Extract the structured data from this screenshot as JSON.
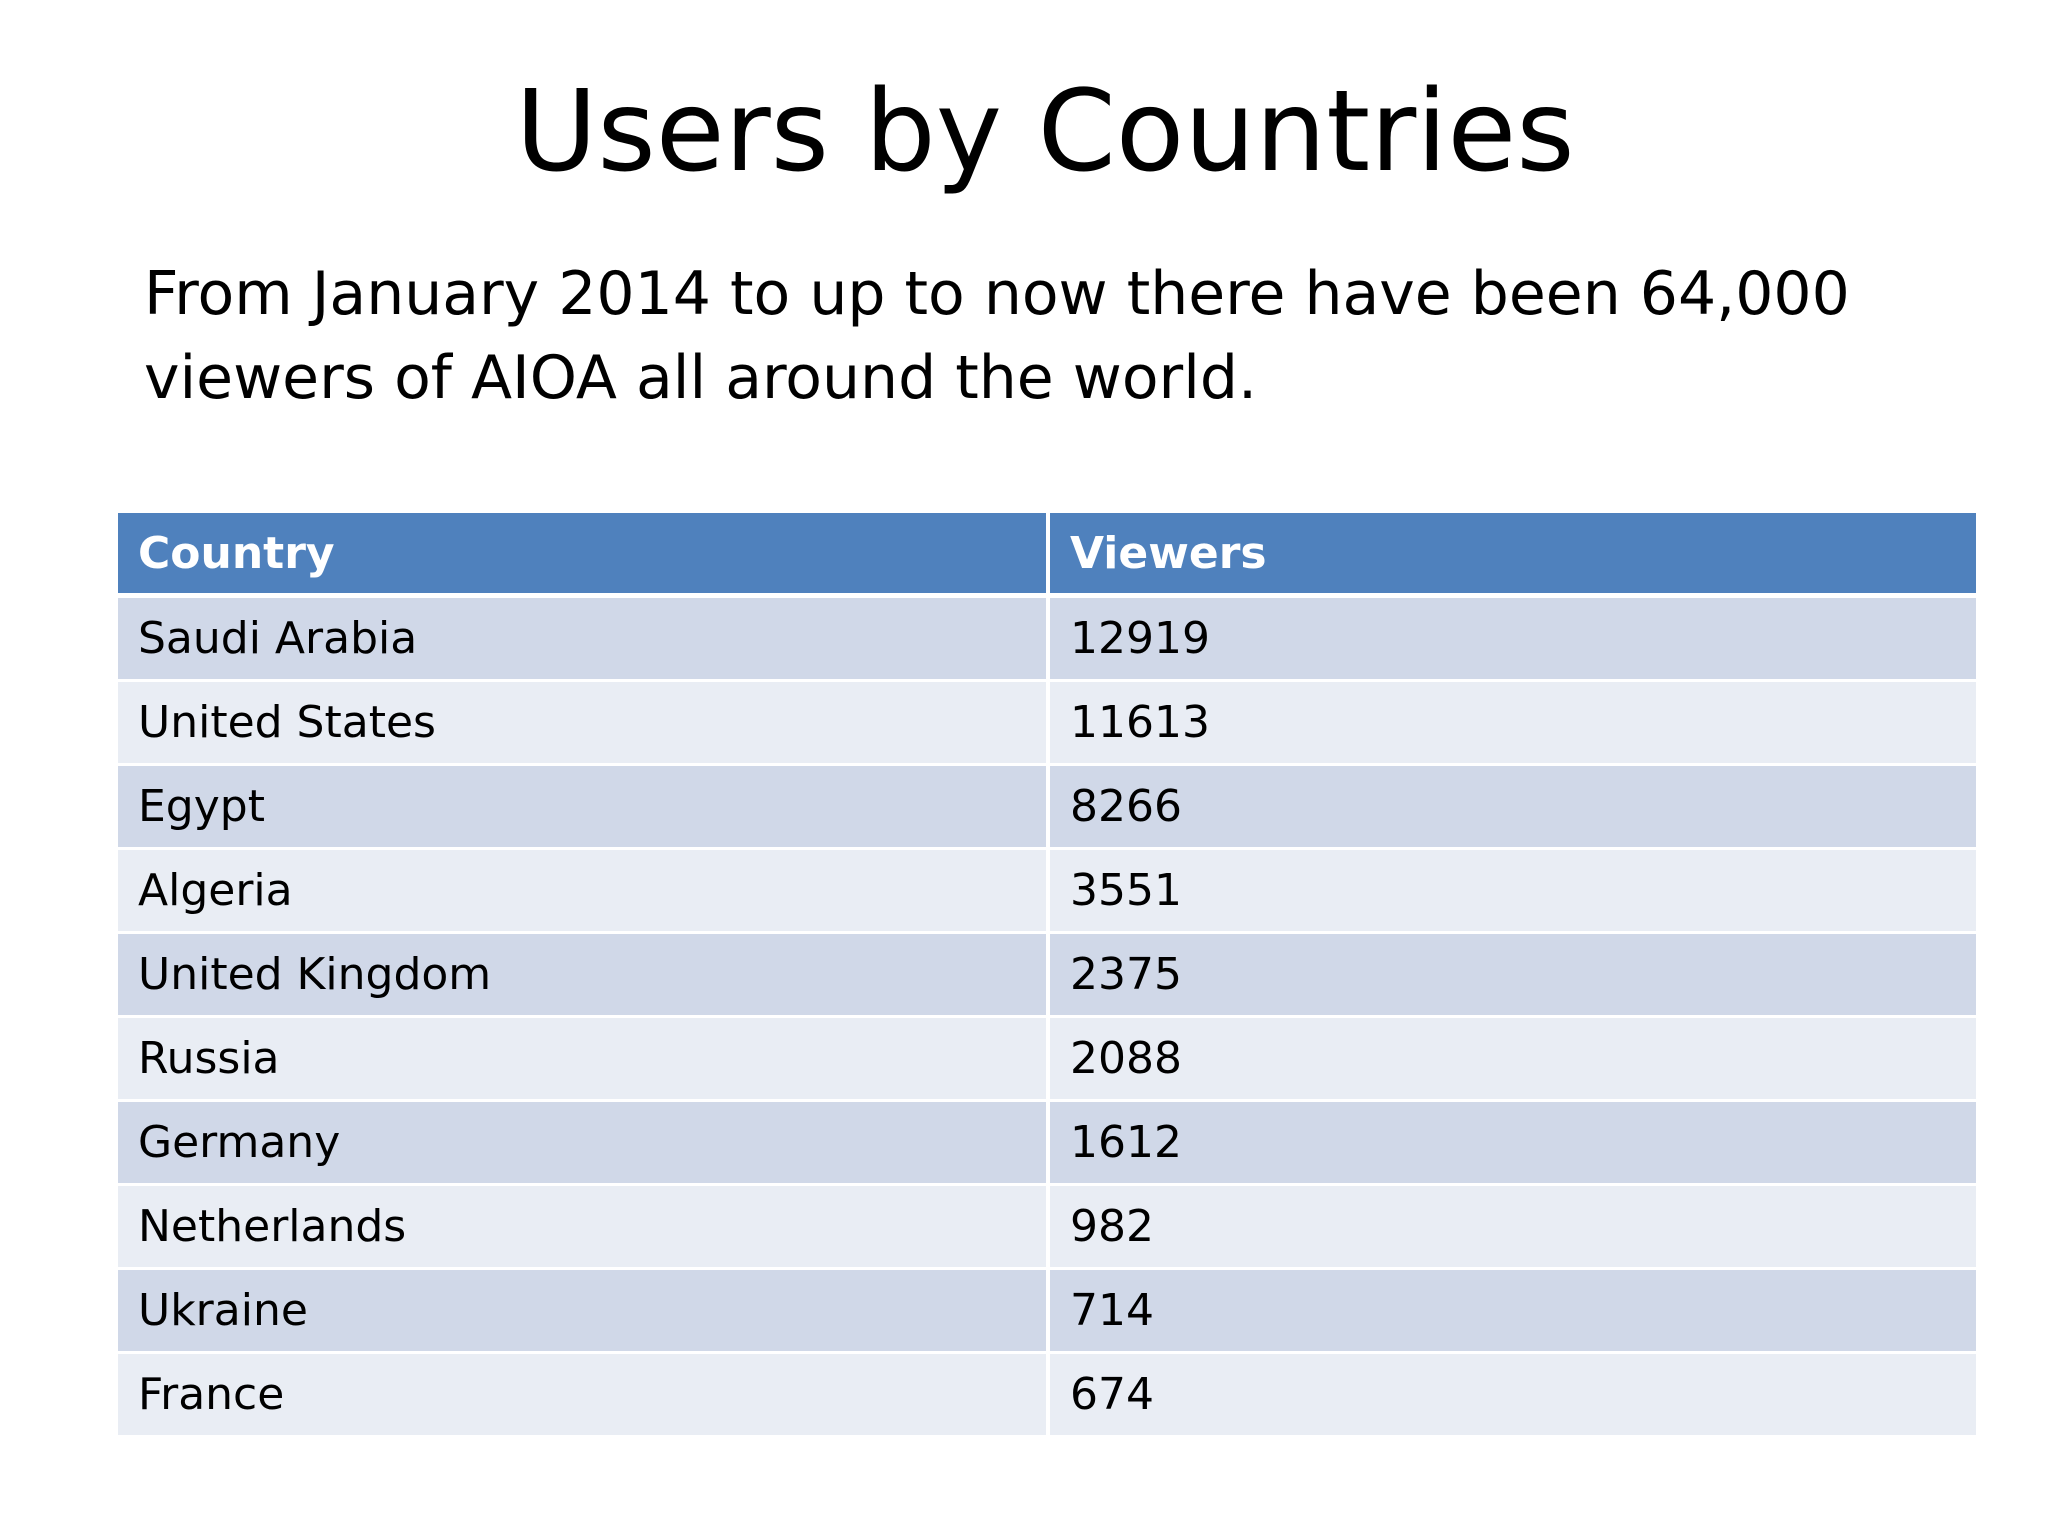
{
  "slide": {
    "title": "Users by Countries",
    "body": "From January 2014 to up to now there have been 64,000 viewers of AIOA all around the world."
  },
  "table": {
    "headers": [
      "Country",
      "Viewers"
    ],
    "rows": [
      {
        "country": "Saudi Arabia",
        "viewers": "12919"
      },
      {
        "country": "United States",
        "viewers": "11613"
      },
      {
        "country": "Egypt",
        "viewers": "8266"
      },
      {
        "country": "Algeria",
        "viewers": "3551"
      },
      {
        "country": "United Kingdom",
        "viewers": "2375"
      },
      {
        "country": "Russia",
        "viewers": "2088"
      },
      {
        "country": "Germany",
        "viewers": "1612"
      },
      {
        "country": "Netherlands",
        "viewers": "982"
      },
      {
        "country": "Ukraine",
        "viewers": "714"
      },
      {
        "country": "France",
        "viewers": "674"
      }
    ]
  },
  "colors": {
    "header_bg": "#4f81bd",
    "row_odd_bg": "#d0d8e8",
    "row_even_bg": "#e9edf4"
  }
}
